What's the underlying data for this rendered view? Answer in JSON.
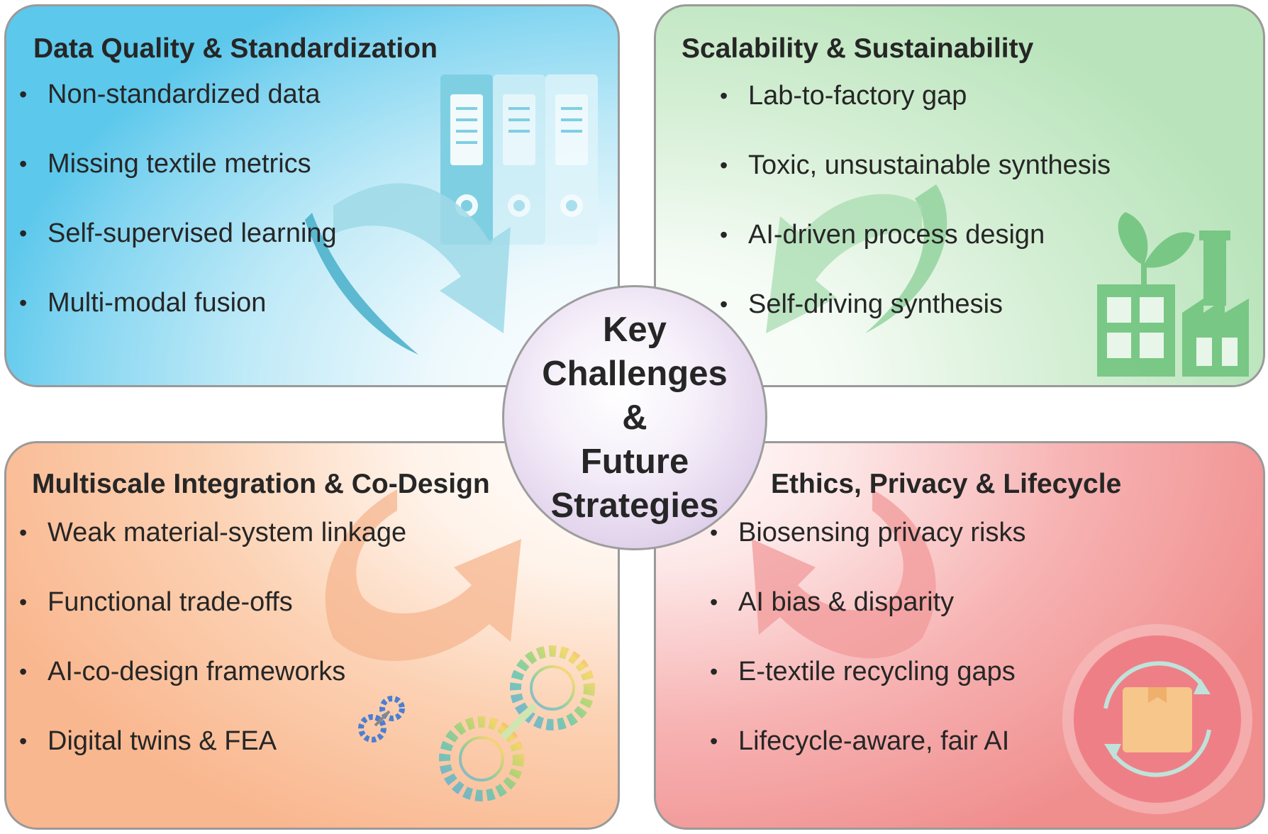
{
  "center": {
    "title": "Key\nChallenges\n&\nFuture\nStrategies"
  },
  "panels": {
    "data_quality": {
      "title": "Data Quality  & Standardization",
      "items": [
        "Non-standardized data",
        "Missing textile metrics",
        "Self-supervised learning",
        "Multi-modal fusion"
      ],
      "color": "#5cc8ec",
      "icon": "filing-binders-icon"
    },
    "scalability": {
      "title": "Scalability  & Sustainability",
      "items": [
        "Lab-to-factory gap",
        "Toxic, unsustainable synthesis",
        "AI-driven process design",
        "Self-driving synthesis"
      ],
      "color": "#b9e4bb",
      "icon": "eco-factory-icon"
    },
    "multiscale": {
      "title": "Multiscale Integration & Co-Design",
      "items": [
        "Weak material-system linkage",
        "Functional trade-offs",
        "AI-co-design frameworks",
        "Digital twins & FEA"
      ],
      "color": "#f9b78f",
      "icon": "gears-icon"
    },
    "ethics": {
      "title": "Ethics, Privacy & Lifecycle",
      "items": [
        "Biosensing privacy risks",
        "AI bias & disparity",
        "E-textile recycling gaps",
        "Lifecycle-aware, fair AI"
      ],
      "color": "#f08d8d",
      "icon": "recycle-box-icon"
    }
  }
}
